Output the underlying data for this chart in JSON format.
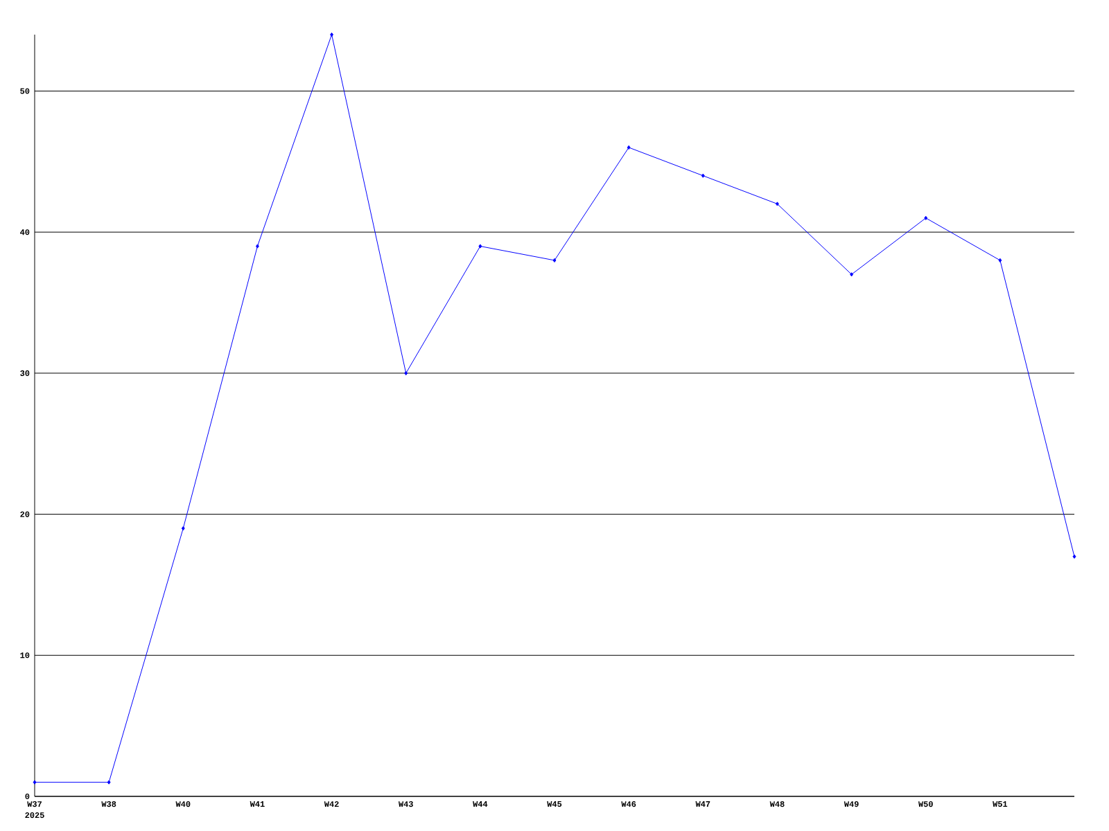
{
  "chart_data": {
    "type": "line",
    "categories": [
      "W37",
      "W38",
      "W40",
      "W41",
      "W42",
      "W43",
      "W44",
      "W45",
      "W46",
      "W47",
      "W48",
      "W49",
      "W50",
      "W51",
      null
    ],
    "series": [
      {
        "color": "#0000ff",
        "values": [
          1,
          1,
          19,
          39,
          54,
          30,
          39,
          38,
          46,
          44,
          42,
          37,
          41,
          38,
          17
        ]
      }
    ],
    "ylim": [
      0,
      54
    ],
    "yticks": [
      0,
      10,
      20,
      30,
      40,
      50
    ],
    "grid": "y",
    "marker": "diamond",
    "line_style": "solid",
    "annotations": [
      "2025"
    ]
  }
}
